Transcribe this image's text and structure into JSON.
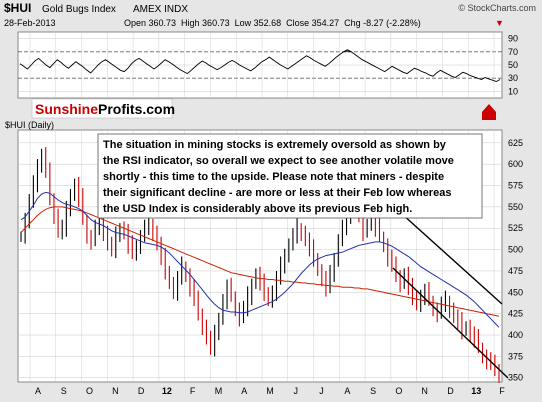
{
  "header": {
    "ticker": "$HUI",
    "name": "Gold Bugs Index",
    "exchange": "AMEX INDX",
    "watermark": "© StockCharts.com",
    "date": "28-Feb-2013",
    "quote": "Open 360.73  High 360.73  Low 352.68  Close 354.27  Chg -8.27 (-2.28%)",
    "quote_arrow": "▼"
  },
  "logo": {
    "part1": "Sunshine",
    "part2": "Profits",
    "part3": ".com"
  },
  "main_panel": {
    "label": "$HUI (Daily)"
  },
  "annotation": {
    "lines": [
      "The situation in mining stocks is extremely oversold as shown by",
      "the RSI indicator, so overall we expect to see another volatile move",
      "shortly - this time to the upside. Please note that miners - despite",
      "their significant decline - are more or less at their Feb low whereas",
      "the USD Index is considerably above its previous Feb high."
    ]
  },
  "colors": {
    "background": "#e6e6e6",
    "plot_bg": "#ffffff",
    "grid": "#c8c8c8",
    "bar_up": "#000000",
    "bar_down": "#cc0000",
    "ma_short": "#2233aa",
    "ma_long": "#cc2200",
    "trend": "#000000",
    "rsi_overbought_fill": "#7fbf7f",
    "logo_red": "#cc0000",
    "logo_black": "#000000"
  },
  "chart_data": [
    {
      "type": "line",
      "title": "RSI",
      "y_ticks": [
        10,
        30,
        50,
        70,
        90
      ],
      "ylim": [
        0,
        100
      ],
      "reference_lines": [
        30,
        70
      ],
      "rsi": [
        52,
        48,
        44,
        50,
        56,
        60,
        55,
        50,
        46,
        52,
        58,
        54,
        49,
        45,
        50,
        55,
        51,
        47,
        42,
        38,
        44,
        50,
        55,
        58,
        54,
        50,
        46,
        42,
        40,
        45,
        52,
        57,
        60,
        56,
        52,
        48,
        44,
        48,
        53,
        58,
        55,
        51,
        47,
        43,
        40,
        37,
        42,
        47,
        52,
        56,
        53,
        49,
        46,
        43,
        46,
        50,
        54,
        57,
        54,
        50,
        47,
        44,
        41,
        45,
        50,
        55,
        58,
        62,
        58,
        54,
        50,
        47,
        44,
        48,
        52,
        56,
        60,
        64,
        61,
        57,
        54,
        51,
        48,
        52,
        57,
        62,
        66,
        70,
        73,
        70,
        66,
        62,
        58,
        55,
        52,
        49,
        46,
        43,
        40,
        44,
        48,
        45,
        42,
        39,
        37,
        41,
        45,
        43,
        40,
        38,
        35,
        33,
        38,
        42,
        39,
        36,
        33,
        31,
        35,
        39,
        37,
        34,
        32,
        30,
        28,
        31,
        29,
        27,
        25,
        28
      ]
    },
    {
      "type": "bar",
      "title": "$HUI (Daily)",
      "x_tick_labels": [
        "A",
        "S",
        "O",
        "N",
        "D",
        "12",
        "F",
        "M",
        "A",
        "M",
        "J",
        "J",
        "A",
        "S",
        "O",
        "N",
        "D",
        "13",
        "F"
      ],
      "y_ticks": [
        350,
        375,
        400,
        425,
        450,
        475,
        500,
        525,
        550,
        575,
        600,
        625
      ],
      "ylim": [
        345,
        640
      ],
      "close": [
        515,
        535,
        555,
        575,
        600,
        610,
        590,
        560,
        540,
        520,
        525,
        545,
        565,
        575,
        560,
        535,
        515,
        510,
        525,
        540,
        520,
        505,
        500,
        515,
        525,
        520,
        505,
        495,
        505,
        515,
        525,
        530,
        520,
        505,
        490,
        475,
        460,
        450,
        465,
        480,
        470,
        455,
        440,
        425,
        410,
        395,
        385,
        400,
        420,
        440,
        455,
        445,
        430,
        420,
        430,
        445,
        460,
        470,
        460,
        450,
        440,
        450,
        465,
        480,
        495,
        505,
        515,
        525,
        520,
        510,
        500,
        490,
        475,
        465,
        455,
        470,
        490,
        510,
        525,
        540,
        550,
        545,
        540,
        520,
        530,
        535,
        525,
        515,
        505,
        490,
        480,
        470,
        460,
        470,
        455,
        445,
        435,
        445,
        450,
        440,
        430,
        425,
        435,
        440,
        430,
        420,
        415,
        405,
        410,
        400,
        395,
        385,
        375,
        370,
        365,
        360,
        354
      ],
      "ma_short": [
        535,
        538,
        545,
        552,
        560,
        565,
        567,
        566,
        562,
        558,
        555,
        553,
        552,
        550,
        548,
        545,
        540,
        535,
        532,
        530,
        528,
        525,
        522,
        520,
        519,
        518,
        516,
        514,
        512,
        510,
        508,
        507,
        506,
        505,
        503,
        500,
        496,
        491,
        486,
        481,
        476,
        471,
        465,
        459,
        453,
        447,
        441,
        436,
        432,
        429,
        428,
        427,
        427,
        426,
        426,
        427,
        429,
        431,
        433,
        435,
        437,
        439,
        442,
        446,
        450,
        455,
        460,
        466,
        472,
        477,
        482,
        486,
        489,
        491,
        493,
        494,
        495,
        496,
        497,
        499,
        501,
        503,
        505,
        506,
        507,
        508,
        509,
        509,
        508,
        506,
        504,
        501,
        498,
        495,
        492,
        488,
        484,
        480,
        477,
        474,
        471,
        468,
        465,
        462,
        459,
        456,
        453,
        450,
        447,
        443,
        439,
        434,
        429,
        424,
        419,
        414,
        409
      ],
      "ma_long": [
        520,
        525,
        530,
        535,
        540,
        544,
        547,
        549,
        550,
        550,
        550,
        549,
        548,
        547,
        546,
        545,
        543,
        541,
        539,
        537,
        535,
        533,
        531,
        529,
        527,
        525,
        523,
        521,
        519,
        517,
        515,
        513,
        511,
        509,
        507,
        505,
        503,
        501,
        499,
        497,
        495,
        493,
        491,
        489,
        487,
        485,
        483,
        481,
        479,
        477,
        475,
        473,
        472,
        471,
        470,
        469,
        468,
        467,
        466,
        466,
        465,
        465,
        464,
        464,
        463,
        463,
        462,
        462,
        461,
        461,
        460,
        460,
        459,
        459,
        458,
        458,
        457,
        457,
        456,
        456,
        456,
        455,
        455,
        454,
        454,
        453,
        452,
        451,
        450,
        449,
        448,
        447,
        446,
        445,
        444,
        443,
        442,
        441,
        440,
        439,
        438,
        437,
        436,
        435,
        434,
        433,
        432,
        431,
        430,
        429,
        428,
        427,
        426,
        425,
        424,
        423,
        422
      ]
    }
  ]
}
